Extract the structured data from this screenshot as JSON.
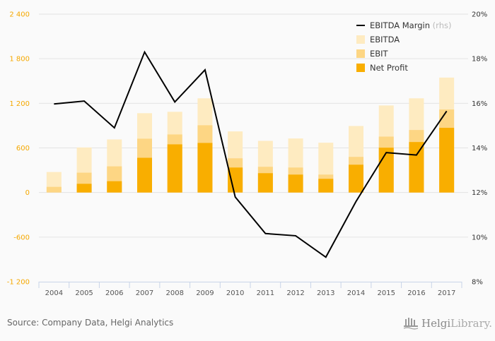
{
  "chart_data": {
    "type": "bar",
    "subtype": "stacked-overlay-bar-with-line",
    "title": "",
    "xlabel": "",
    "ylabel": "",
    "categories": [
      "2004",
      "2005",
      "2006",
      "2007",
      "2008",
      "2009",
      "2010",
      "2011",
      "2012",
      "2013",
      "2014",
      "2015",
      "2016",
      "2017"
    ],
    "series": [
      {
        "name": "EBITDA",
        "axis": "left",
        "kind": "bar",
        "color": "#feebc1",
        "values": [
          276,
          606,
          714,
          1067,
          1086,
          1267,
          822,
          695,
          727,
          670,
          895,
          1171,
          1267,
          1546
        ]
      },
      {
        "name": "EBIT",
        "axis": "left",
        "kind": "bar",
        "color": "#fdd684",
        "values": [
          76,
          267,
          352,
          724,
          781,
          905,
          460,
          346,
          336,
          241,
          479,
          752,
          841,
          1117
        ]
      },
      {
        "name": "Net Profit",
        "axis": "left",
        "kind": "bar",
        "color": "#f9ae00",
        "values": [
          0,
          117,
          152,
          467,
          648,
          667,
          336,
          260,
          241,
          184,
          374,
          603,
          679,
          870
        ]
      },
      {
        "name": "EBITDA Margin",
        "axis": "right",
        "kind": "line",
        "color": "#000000",
        "unit": "%",
        "values": [
          15.97,
          16.1,
          14.9,
          18.3,
          16.06,
          17.5,
          11.8,
          10.16,
          10.06,
          9.1,
          11.6,
          13.79,
          13.68,
          15.65
        ]
      }
    ],
    "y_left": {
      "ylim": [
        -1200,
        2400
      ],
      "ticks": [
        2400,
        1800,
        1200,
        600,
        0,
        -600,
        -1200
      ],
      "tick_labels": [
        "2 400",
        "1 800",
        "1 200",
        "600",
        "0",
        "-600",
        "-1 200"
      ],
      "color": "#f5a800"
    },
    "y_right": {
      "ylim": [
        8,
        20
      ],
      "ticks": [
        20,
        18,
        16,
        14,
        12,
        10,
        8
      ],
      "tick_labels": [
        "20%",
        "18%",
        "16%",
        "14%",
        "12%",
        "10%",
        "8%"
      ]
    },
    "grid": true,
    "legend": {
      "placement": "top-right",
      "entries": [
        {
          "label": "EBITDA Margin",
          "suffix": "(rhs)",
          "symbol": "line",
          "color": "#000000"
        },
        {
          "label": "EBITDA",
          "symbol": "square",
          "color": "#feebc1"
        },
        {
          "label": "EBIT",
          "symbol": "square",
          "color": "#fdd684"
        },
        {
          "label": "Net Profit",
          "symbol": "square",
          "color": "#f9ae00"
        }
      ]
    }
  },
  "footer": {
    "source": "Source: Company Data, Helgi Analytics",
    "logo_main": "Helgi",
    "logo_sub": "Library."
  }
}
